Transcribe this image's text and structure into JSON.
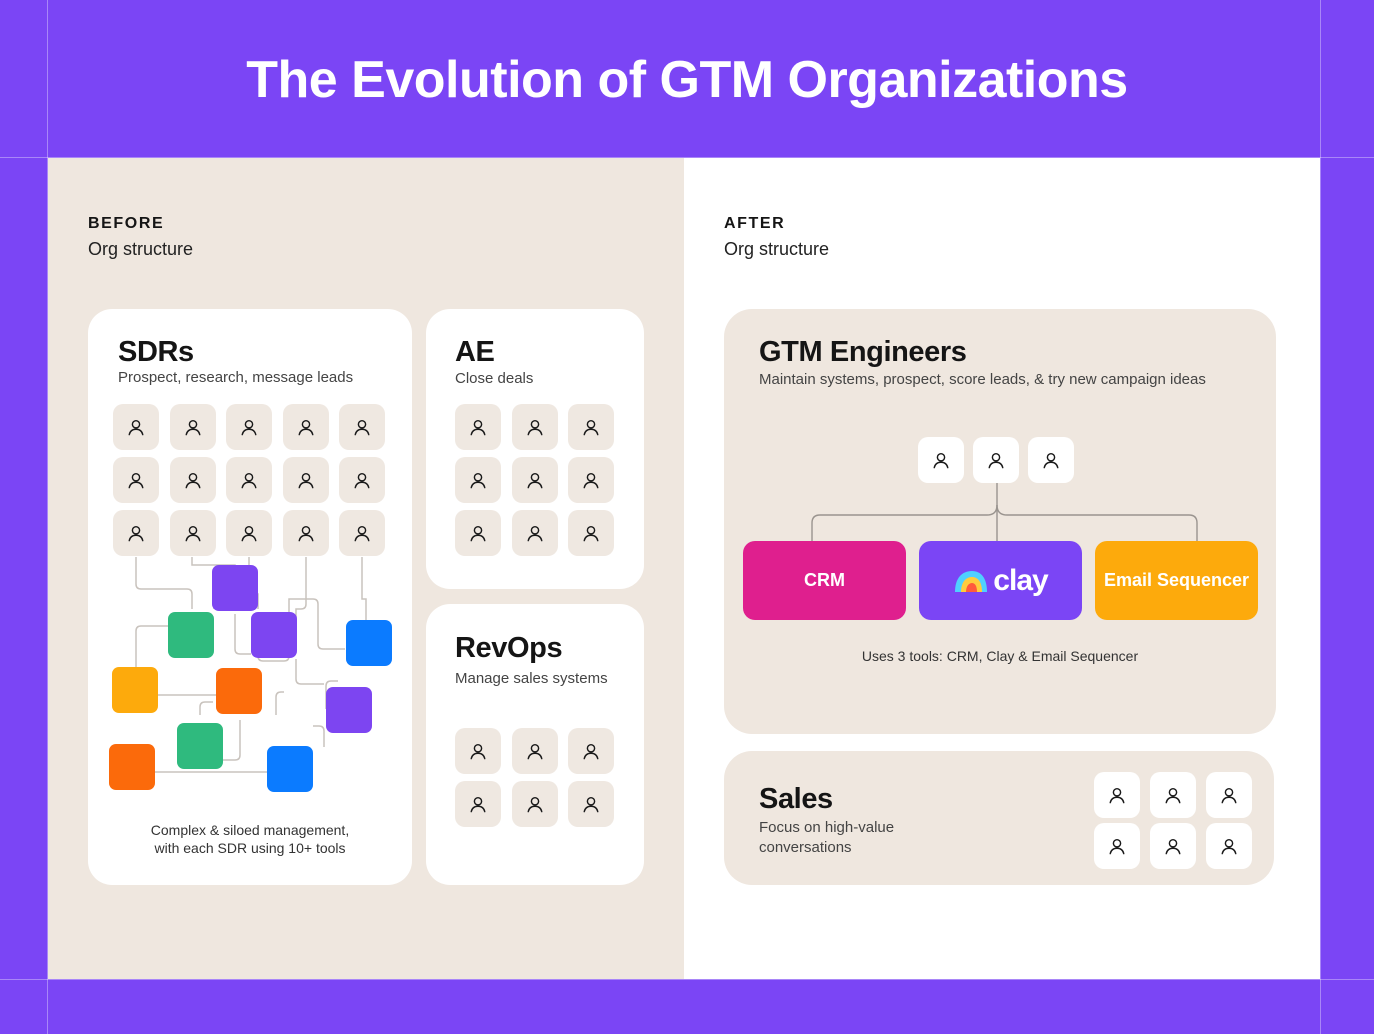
{
  "title": "The Evolution of GTM Organizations",
  "before": {
    "label": "BEFORE",
    "subtitle": "Org structure",
    "sdrs": {
      "title": "SDRs",
      "desc": "Prospect, research, message leads",
      "person_count": 15,
      "caption_line1": "Complex & siloed management,",
      "caption_line2": "with each SDR using 10+ tools"
    },
    "ae": {
      "title": "AE",
      "desc": "Close deals",
      "person_count": 9
    },
    "revops": {
      "title": "RevOps",
      "desc": "Manage sales systems",
      "person_count": 6
    }
  },
  "after": {
    "label": "AFTER",
    "subtitle": "Org structure",
    "gtm": {
      "title": "GTM Engineers",
      "desc": "Maintain systems, prospect, score leads, & try new campaign ideas",
      "person_count": 3,
      "tools": [
        {
          "label": "CRM",
          "color": "#df1f8e"
        },
        {
          "label": "clay",
          "color": "#7b45f5"
        },
        {
          "label": "Email Sequencer",
          "color": "#fdaa0c"
        }
      ],
      "caption": "Uses 3 tools: CRM, Clay & Email Sequencer"
    },
    "sales": {
      "title": "Sales",
      "desc_line1": "Focus on high-value",
      "desc_line2": "conversations",
      "person_count": 6
    }
  },
  "colors": {
    "brand_purple": "#7b45f5",
    "beige": "#efe7df",
    "tile_purple": "#7d45f1",
    "tile_green": "#2fba7e",
    "tile_orange": "#fb6a0b",
    "tile_yellow": "#fdaa0c",
    "tile_blue": "#0b7bff"
  },
  "icons": [
    "person-icon",
    "clay-logo-icon"
  ]
}
